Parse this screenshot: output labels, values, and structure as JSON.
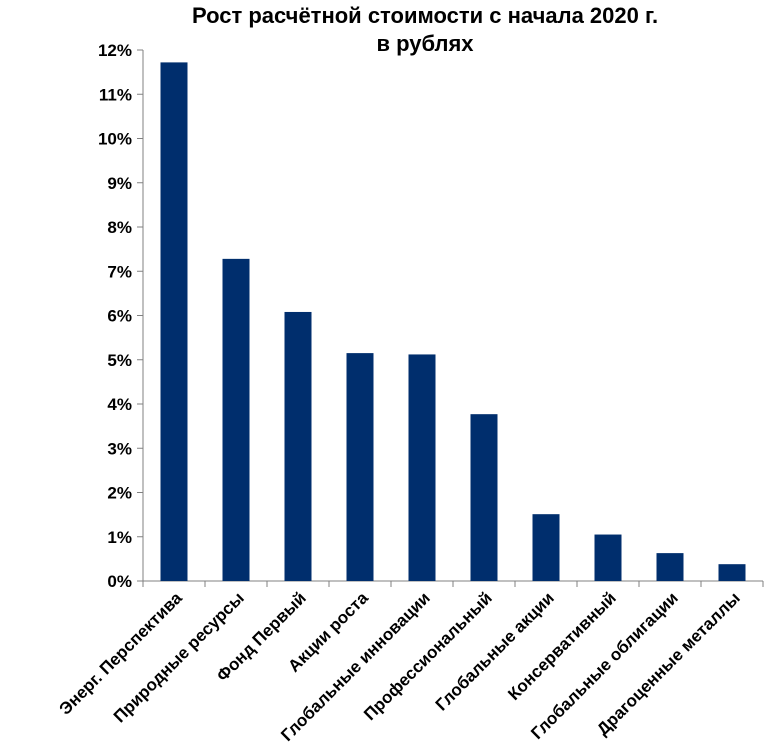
{
  "chart_data": {
    "type": "bar",
    "title": [
      "Рост расчётной стоимости с начала 2020 г.",
      "в рублях"
    ],
    "categories": [
      "Энерг. Перспектива",
      "Природные ресурсы",
      "Фонд Первый",
      "Акции роста",
      "Глобальные инновации",
      "Профессиональный",
      "Глобальные акции",
      "Консервативный",
      "Глобальные облигации",
      "Драгоценные металлы"
    ],
    "values": [
      11.72,
      7.28,
      6.08,
      5.15,
      5.12,
      3.77,
      1.51,
      1.05,
      0.63,
      0.38
    ],
    "ylim": [
      0,
      12
    ],
    "yticks": [
      "0%",
      "1%",
      "2%",
      "3%",
      "4%",
      "5%",
      "6%",
      "7%",
      "8%",
      "9%",
      "10%",
      "11%",
      "12%"
    ],
    "bar_color": "#002E6D",
    "grid": false,
    "legend": "none"
  }
}
